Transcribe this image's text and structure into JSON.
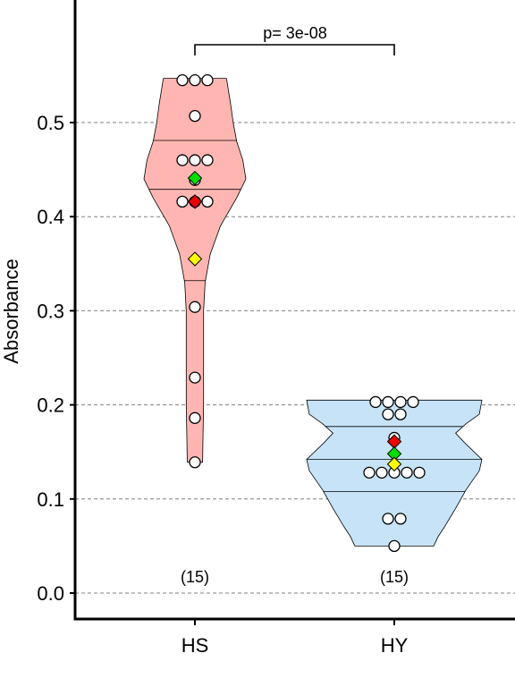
{
  "chart_data": {
    "type": "violin",
    "title": "",
    "xlabel": "",
    "ylabel": "Absorbance",
    "ylim": [
      -0.03,
      0.63
    ],
    "yticks": [
      0.0,
      0.1,
      0.2,
      0.3,
      0.4,
      0.5
    ],
    "ytick_labels": [
      "0.0",
      "0.1",
      "0.2",
      "0.3",
      "0.4",
      "0.5"
    ],
    "grid": "horizontal dashed",
    "categories": [
      "HS",
      "HY"
    ],
    "groups": [
      {
        "category": "HS",
        "n_label": "(15)",
        "fill_color": "#ffb6b2",
        "range": [
          0.139,
          0.547
        ],
        "quartiles": [
          0.332,
          0.429,
          0.481
        ],
        "points": [
          0.545,
          0.545,
          0.545,
          0.507,
          0.46,
          0.46,
          0.46,
          0.439,
          0.416,
          0.416,
          0.416,
          0.304,
          0.229,
          0.186,
          0.139
        ],
        "markers": {
          "green": 0.441,
          "red": 0.416,
          "yellow": 0.355
        },
        "density": [
          [
            0.139,
            0.15
          ],
          [
            0.17,
            0.16
          ],
          [
            0.2,
            0.17
          ],
          [
            0.25,
            0.17
          ],
          [
            0.3,
            0.17
          ],
          [
            0.33,
            0.2
          ],
          [
            0.36,
            0.3
          ],
          [
            0.39,
            0.5
          ],
          [
            0.42,
            0.82
          ],
          [
            0.44,
            1.0
          ],
          [
            0.46,
            0.94
          ],
          [
            0.48,
            0.82
          ],
          [
            0.5,
            0.75
          ],
          [
            0.52,
            0.7
          ],
          [
            0.547,
            0.62
          ]
        ]
      },
      {
        "category": "HY",
        "n_label": "(15)",
        "fill_color": "#c6e3f8",
        "range": [
          0.05,
          0.205
        ],
        "quartiles": [
          0.108,
          0.142,
          0.177
        ],
        "points": [
          0.203,
          0.203,
          0.203,
          0.203,
          0.19,
          0.19,
          0.165,
          0.128,
          0.128,
          0.128,
          0.128,
          0.128,
          0.079,
          0.079,
          0.05
        ],
        "markers": {
          "red": 0.161,
          "green": 0.148,
          "yellow": 0.137
        },
        "density": [
          [
            0.05,
            0.45
          ],
          [
            0.06,
            0.5
          ],
          [
            0.07,
            0.57
          ],
          [
            0.09,
            0.7
          ],
          [
            0.11,
            0.82
          ],
          [
            0.13,
            0.97
          ],
          [
            0.142,
            1.0
          ],
          [
            0.16,
            0.8
          ],
          [
            0.17,
            0.7
          ],
          [
            0.18,
            0.82
          ],
          [
            0.19,
            0.97
          ],
          [
            0.205,
            1.0
          ]
        ]
      }
    ],
    "comparison": {
      "from": "HS",
      "to": "HY",
      "label": "p= 3e-08"
    },
    "colors": {
      "green": "#00dd00",
      "red": "#ee0000",
      "yellow": "#ffff00",
      "grid": "#808080"
    }
  }
}
